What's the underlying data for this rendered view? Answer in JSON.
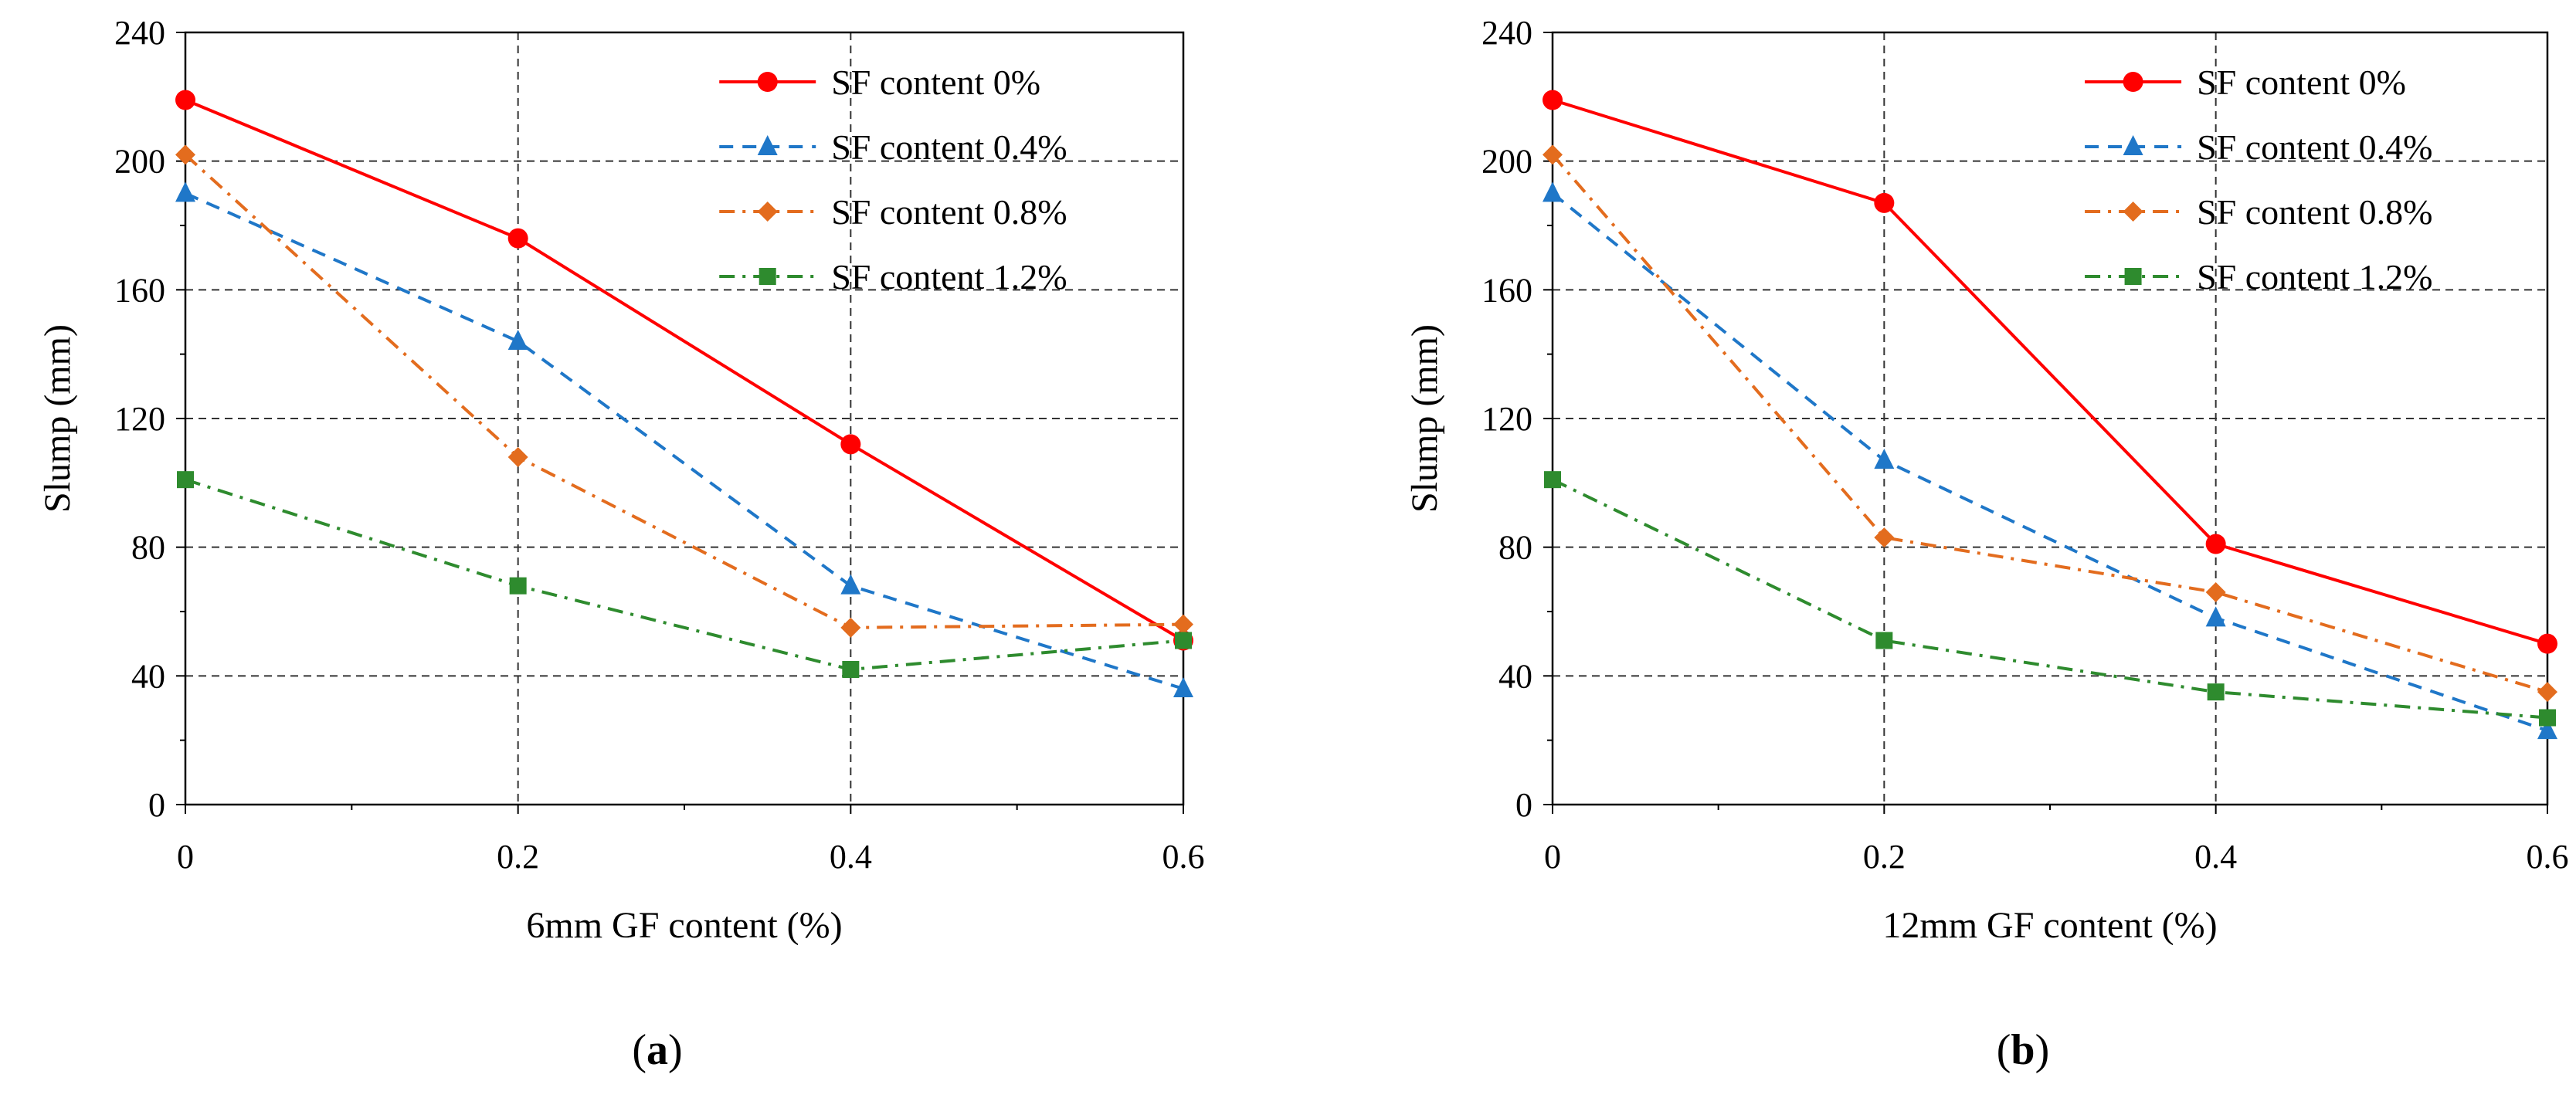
{
  "chart_data": [
    {
      "type": "line",
      "panel_label": "a",
      "x": [
        0,
        0.2,
        0.4,
        0.6
      ],
      "xlabel": "6mm GF content (%)",
      "ylabel": "Slump (mm)",
      "xlim": [
        0,
        0.6
      ],
      "ylim": [
        0,
        240
      ],
      "xticks": [
        "0",
        "0.2",
        "0.4",
        "0.6"
      ],
      "yticks": [
        "0",
        "40",
        "80",
        "120",
        "160",
        "200",
        "240"
      ],
      "grid": true,
      "legend_position": "top-right",
      "series": [
        {
          "name": "SF content 0%",
          "values": [
            219,
            176,
            112,
            51
          ],
          "color": "#ff0000",
          "marker": "circle",
          "dash": "solid"
        },
        {
          "name": "SF content 0.4%",
          "values": [
            190,
            144,
            68,
            36
          ],
          "color": "#1f77c8",
          "marker": "triangle",
          "dash": "dash"
        },
        {
          "name": "SF content 0.8%",
          "values": [
            202,
            108,
            55,
            56
          ],
          "color": "#e36c1e",
          "marker": "diamond",
          "dash": "dashdot"
        },
        {
          "name": "SF content 1.2%",
          "values": [
            101,
            68,
            42,
            51
          ],
          "color": "#2e8b2e",
          "marker": "square",
          "dash": "dashdot"
        }
      ]
    },
    {
      "type": "line",
      "panel_label": "b",
      "x": [
        0,
        0.2,
        0.4,
        0.6
      ],
      "xlabel": "12mm GF content (%)",
      "ylabel": "Slump (mm)",
      "xlim": [
        0,
        0.6
      ],
      "ylim": [
        0,
        240
      ],
      "xticks": [
        "0",
        "0.2",
        "0.4",
        "0.6"
      ],
      "yticks": [
        "0",
        "40",
        "80",
        "120",
        "160",
        "200",
        "240"
      ],
      "grid": true,
      "legend_position": "top-right",
      "series": [
        {
          "name": "SF content 0%",
          "values": [
            219,
            187,
            81,
            50
          ],
          "color": "#ff0000",
          "marker": "circle",
          "dash": "solid"
        },
        {
          "name": "SF content 0.4%",
          "values": [
            190,
            107,
            58,
            23
          ],
          "color": "#1f77c8",
          "marker": "triangle",
          "dash": "dash"
        },
        {
          "name": "SF content 0.8%",
          "values": [
            202,
            83,
            66,
            35
          ],
          "color": "#e36c1e",
          "marker": "diamond",
          "dash": "dashdot"
        },
        {
          "name": "SF content 1.2%",
          "values": [
            101,
            51,
            35,
            27
          ],
          "color": "#2e8b2e",
          "marker": "square",
          "dash": "dashdot"
        }
      ]
    }
  ]
}
